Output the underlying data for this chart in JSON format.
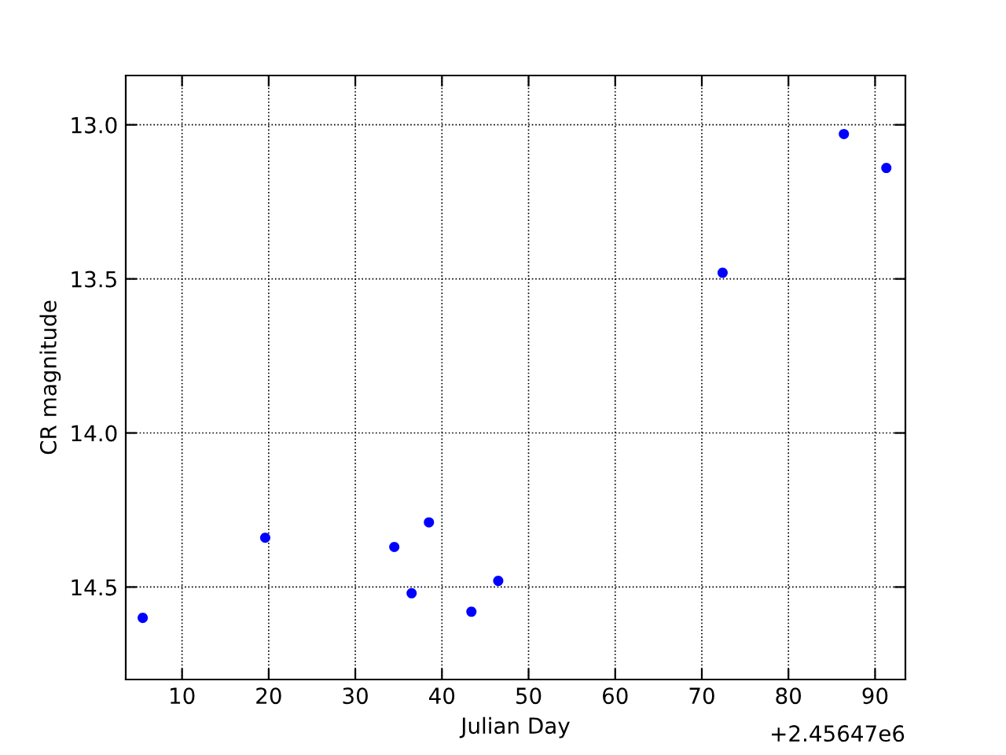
{
  "chart_data": {
    "type": "scatter",
    "xlabel": "Julian Day",
    "ylabel": "CR magnitude",
    "x": [
      5.46,
      19.6,
      34.5,
      36.5,
      38.5,
      43.4,
      46.5,
      72.4,
      86.4,
      91.3
    ],
    "series": [
      {
        "color": "#0000ff",
        "values": [
          14.6,
          14.34,
          14.37,
          14.52,
          14.29,
          14.58,
          14.48,
          13.48,
          13.03,
          13.14
        ]
      }
    ],
    "xlim": [
      3.5,
      93.5
    ],
    "ylim": [
      14.8,
      12.84
    ],
    "xticks": [
      10,
      20,
      30,
      40,
      50,
      60,
      70,
      80,
      90
    ],
    "yticks": [
      {
        "value": 13.0,
        "label": "13.0"
      },
      {
        "value": 13.5,
        "label": "13.5"
      },
      {
        "value": 14.0,
        "label": "14.0"
      },
      {
        "value": 14.5,
        "label": "14.5"
      }
    ],
    "annotations": [
      "+2.45647e6"
    ],
    "grid": true,
    "marker": "circle"
  }
}
